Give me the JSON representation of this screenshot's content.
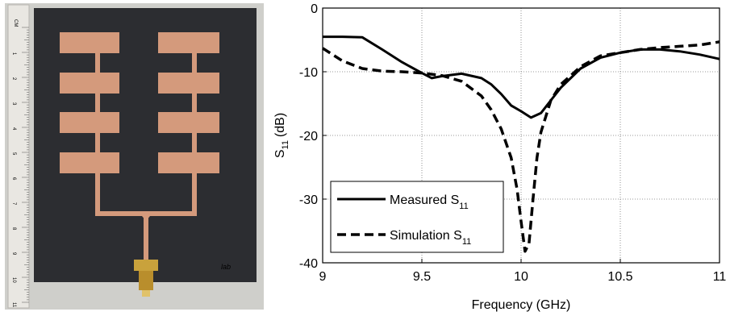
{
  "photo": {
    "ruler_unit": "CM",
    "ruler_numbers": [
      "1",
      "2",
      "3",
      "4",
      "5",
      "6",
      "7",
      "8",
      "9",
      "10",
      "11"
    ],
    "colors": {
      "board": "#2c2d31",
      "copper": "#d49a7c",
      "background": "#cfcfcb",
      "ruler": "#e9e7e2",
      "connector": "#c9a23c"
    }
  },
  "chart_data": {
    "type": "line",
    "xlabel": "Frequency (GHz)",
    "ylabel_main": "S",
    "ylabel_sub": "11",
    "ylabel_unit": "(dB)",
    "xlim": [
      9,
      11
    ],
    "ylim": [
      -40,
      0
    ],
    "x_ticks": [
      {
        "value": 9,
        "label": "9"
      },
      {
        "value": 9.5,
        "label": "9.5"
      },
      {
        "value": 10,
        "label": "10"
      },
      {
        "value": 10.5,
        "label": "10.5"
      },
      {
        "value": 11,
        "label": "11"
      }
    ],
    "y_ticks": [
      {
        "value": 0,
        "label": "0"
      },
      {
        "value": -10,
        "label": "-10"
      },
      {
        "value": -20,
        "label": "-20"
      },
      {
        "value": -30,
        "label": "-30"
      },
      {
        "value": -40,
        "label": "-40"
      }
    ],
    "grid": true,
    "legend_position": "bottom-left",
    "series": [
      {
        "name": "Measured S",
        "name_sub": "11",
        "style": "solid",
        "color": "#000000",
        "x": [
          9.0,
          9.1,
          9.2,
          9.3,
          9.4,
          9.5,
          9.55,
          9.6,
          9.7,
          9.8,
          9.85,
          9.9,
          9.95,
          10.0,
          10.05,
          10.1,
          10.15,
          10.2,
          10.3,
          10.4,
          10.5,
          10.6,
          10.7,
          10.8,
          10.9,
          11.0
        ],
        "y": [
          -4.5,
          -4.5,
          -4.6,
          -6.5,
          -8.5,
          -10.2,
          -11.0,
          -10.7,
          -10.3,
          -11.0,
          -12.0,
          -13.5,
          -15.3,
          -16.2,
          -17.2,
          -16.5,
          -14.5,
          -12.5,
          -9.5,
          -7.8,
          -7.0,
          -6.5,
          -6.5,
          -6.8,
          -7.3,
          -8.0
        ]
      },
      {
        "name": "Simulation S",
        "name_sub": "11",
        "style": "dashed",
        "color": "#000000",
        "x": [
          9.0,
          9.1,
          9.2,
          9.3,
          9.4,
          9.5,
          9.6,
          9.7,
          9.8,
          9.85,
          9.9,
          9.95,
          9.98,
          10.0,
          10.02,
          10.04,
          10.06,
          10.08,
          10.1,
          10.15,
          10.2,
          10.3,
          10.4,
          10.5,
          10.6,
          10.7,
          10.8,
          10.9,
          11.0
        ],
        "y": [
          -6.3,
          -8.3,
          -9.5,
          -9.9,
          -10.0,
          -10.2,
          -10.6,
          -11.5,
          -13.8,
          -16.0,
          -19.0,
          -23.5,
          -28.5,
          -33.5,
          -38.2,
          -37.0,
          -30.0,
          -23.5,
          -19.5,
          -14.5,
          -12.0,
          -9.2,
          -7.5,
          -7.0,
          -6.5,
          -6.2,
          -6.0,
          -5.8,
          -5.3
        ]
      }
    ]
  }
}
